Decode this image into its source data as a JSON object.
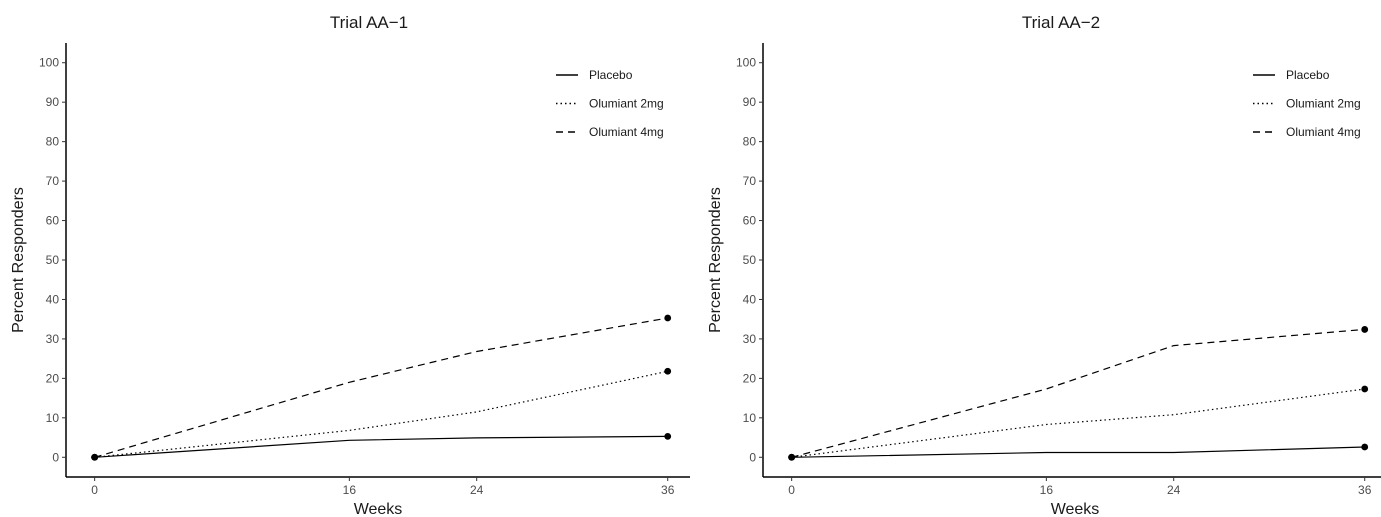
{
  "chart_data": [
    {
      "type": "line",
      "title": "Trial AA−1",
      "xlabel": "Weeks",
      "ylabel": "Percent Responders",
      "x": [
        0,
        16,
        24,
        36
      ],
      "xticks": [
        "0",
        "16",
        "24",
        "36"
      ],
      "yticks": [
        "0",
        "10",
        "20",
        "30",
        "40",
        "50",
        "60",
        "70",
        "80",
        "90",
        "100"
      ],
      "xlim": [
        -1.8,
        37.4
      ],
      "ylim": [
        -5,
        105
      ],
      "grid": false,
      "legend_position": "top-right",
      "markers_at_x": [
        0,
        36
      ],
      "series": [
        {
          "name": "Placebo",
          "linestyle": "solid",
          "values": [
            0,
            4.3,
            4.9,
            5.3
          ]
        },
        {
          "name": "Olumiant 2mg",
          "linestyle": "dotted",
          "values": [
            0,
            6.8,
            11.5,
            21.8
          ]
        },
        {
          "name": "Olumiant 4mg",
          "linestyle": "dashed",
          "values": [
            0,
            19.0,
            26.8,
            35.3
          ]
        }
      ]
    },
    {
      "type": "line",
      "title": "Trial AA−2",
      "xlabel": "Weeks",
      "ylabel": "Percent Responders",
      "x": [
        0,
        16,
        24,
        36
      ],
      "xticks": [
        "0",
        "16",
        "24",
        "36"
      ],
      "yticks": [
        "0",
        "10",
        "20",
        "30",
        "40",
        "50",
        "60",
        "70",
        "80",
        "90",
        "100"
      ],
      "xlim": [
        -1.8,
        37.4
      ],
      "ylim": [
        -5,
        105
      ],
      "grid": false,
      "legend_position": "top-right",
      "markers_at_x": [
        0,
        36
      ],
      "series": [
        {
          "name": "Placebo",
          "linestyle": "solid",
          "values": [
            0,
            1.2,
            1.2,
            2.6
          ]
        },
        {
          "name": "Olumiant 2mg",
          "linestyle": "dotted",
          "values": [
            0,
            8.3,
            10.8,
            17.3
          ]
        },
        {
          "name": "Olumiant 4mg",
          "linestyle": "dashed",
          "values": [
            0,
            17.3,
            28.3,
            32.4
          ]
        }
      ]
    }
  ]
}
